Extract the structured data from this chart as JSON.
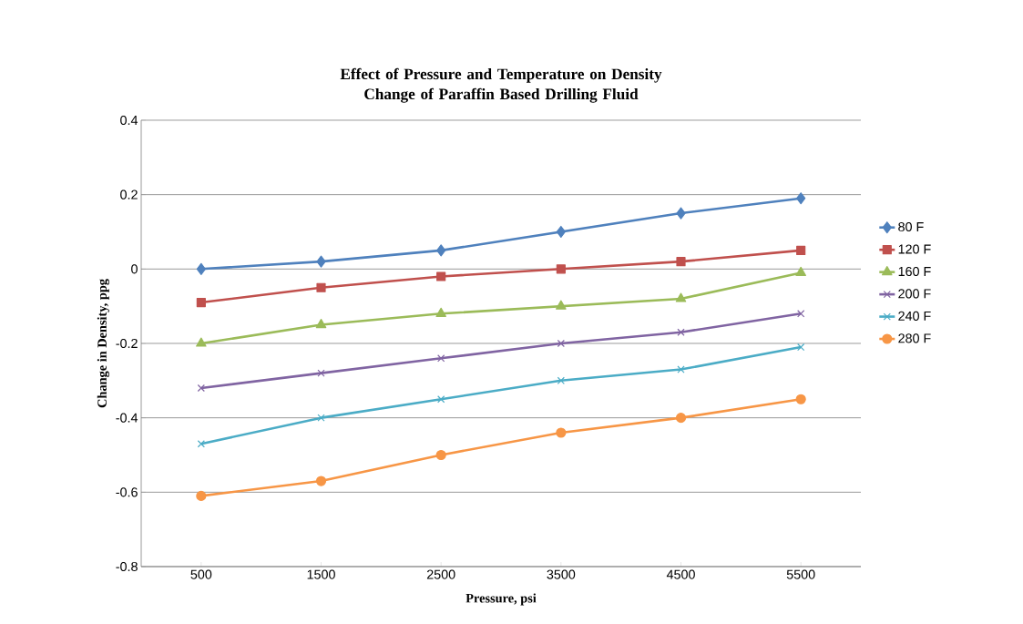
{
  "chart_data": {
    "type": "line",
    "title": "Effect of Pressure and Temperature on Density Change of Paraffin Based Drilling Fluid",
    "xlabel": "Pressure, psi",
    "ylabel": "Change in Density, ppg",
    "categories": [
      "500",
      "1500",
      "2500",
      "3500",
      "4500",
      "5500"
    ],
    "series": [
      {
        "name": "80 F",
        "color": "#4f81bd",
        "marker": "diamond",
        "values": [
          0,
          0.02,
          0.05,
          0.1,
          0.15,
          0.19
        ]
      },
      {
        "name": "120 F",
        "color": "#c0504d",
        "marker": "square",
        "values": [
          -0.09,
          -0.05,
          -0.02,
          0,
          0.02,
          0.05
        ]
      },
      {
        "name": "160 F",
        "color": "#9bbb59",
        "marker": "triangle",
        "values": [
          -0.2,
          -0.15,
          -0.12,
          -0.1,
          -0.08,
          -0.01
        ]
      },
      {
        "name": "200 F",
        "color": "#8064a2",
        "marker": "cross",
        "values": [
          -0.32,
          -0.28,
          -0.24,
          -0.2,
          -0.17,
          -0.12
        ]
      },
      {
        "name": "240 F",
        "color": "#4bacc6",
        "marker": "cross",
        "values": [
          -0.47,
          -0.4,
          -0.35,
          -0.3,
          -0.27,
          -0.21
        ]
      },
      {
        "name": "280 F",
        "color": "#f79646",
        "marker": "circle",
        "values": [
          -0.61,
          -0.57,
          -0.5,
          -0.44,
          -0.4,
          -0.35
        ]
      }
    ],
    "ylim": [
      -0.8,
      0.4
    ],
    "yticks": [
      -0.8,
      -0.6,
      -0.4,
      -0.2,
      0,
      0.2,
      0.4
    ],
    "grid": "y",
    "legend": "right",
    "line_style": "solid"
  }
}
